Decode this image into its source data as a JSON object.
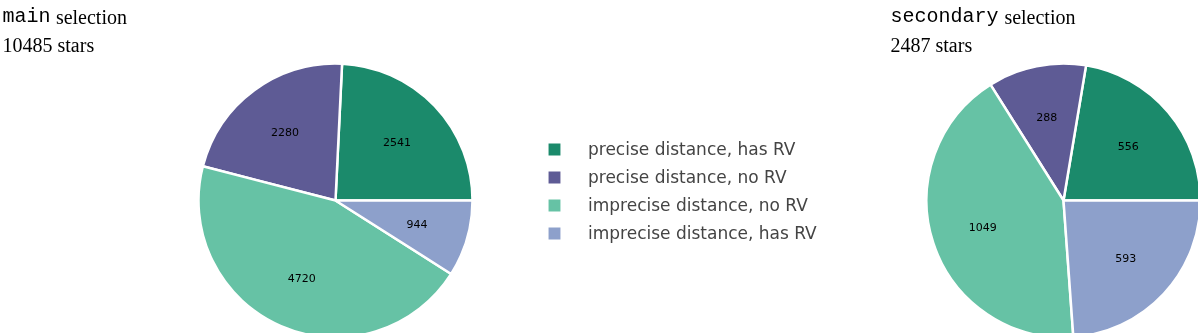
{
  "chart_data": [
    {
      "type": "pie",
      "title": "main selection",
      "subtitle": "10485 stars",
      "categories": [
        "precise distance, has RV",
        "precise distance, no RV",
        "imprecise distance, no RV",
        "imprecise distance, has RV"
      ],
      "values": [
        2541,
        2280,
        4720,
        944
      ],
      "colors": [
        "#1b8a6b",
        "#5e5b95",
        "#66c2a5",
        "#8da0cb"
      ],
      "data_labels": true,
      "legend": "right"
    },
    {
      "type": "pie",
      "title": "secondary selection",
      "subtitle": "2487 stars",
      "categories": [
        null,
        null,
        null,
        null
      ],
      "values": [
        556,
        288,
        1049,
        593
      ],
      "colors": [
        "#1b8a6b",
        "#5e5b95",
        "#66c2a5",
        "#8da0cb"
      ],
      "data_labels": true
    }
  ]
}
